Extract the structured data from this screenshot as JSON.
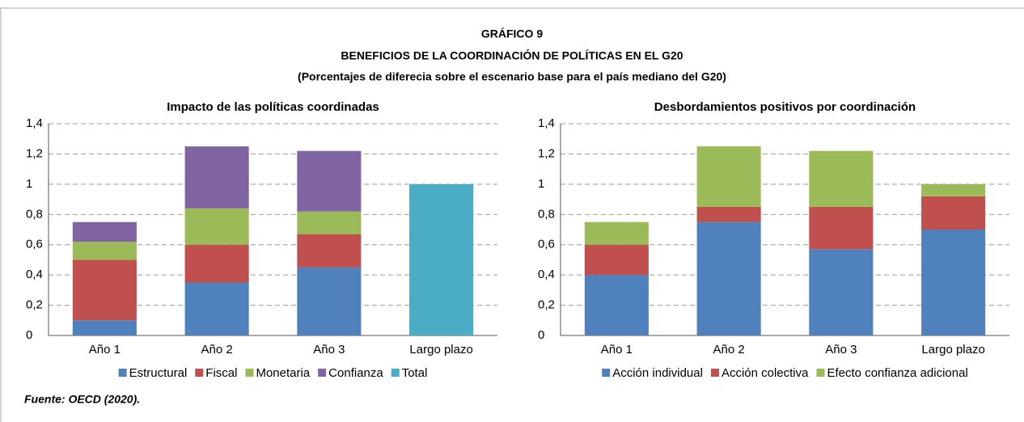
{
  "header": {
    "title": "GRÁFICO 9",
    "subtitle": "BENEFICIOS DE LA COORDINACIÓN DE POLÍTICAS EN EL G20",
    "note": "(Porcentajes de diferecia sobre el escenario base para el país mediano del G20)"
  },
  "source": "Fuente: OECD (2020).",
  "chart_data": [
    {
      "type": "stacked_bar",
      "title": "Impacto de las políticas coordinadas",
      "categories": [
        "Año 1",
        "Año 2",
        "Año 3",
        "Largo plazo"
      ],
      "series": [
        {
          "name": "Estructural",
          "color": "#4f81bd",
          "values": [
            0.1,
            0.35,
            0.45,
            null
          ]
        },
        {
          "name": "Fiscal",
          "color": "#c0504d",
          "values": [
            0.4,
            0.25,
            0.22,
            null
          ]
        },
        {
          "name": "Monetaria",
          "color": "#9bbb59",
          "values": [
            0.12,
            0.24,
            0.15,
            null
          ]
        },
        {
          "name": "Confianza",
          "color": "#8064a2",
          "values": [
            0.13,
            0.41,
            0.4,
            null
          ]
        },
        {
          "name": "Total",
          "color": "#4bacc6",
          "values": [
            null,
            null,
            null,
            1.0
          ]
        }
      ],
      "ylim": [
        0,
        1.4
      ],
      "yticks": [
        0,
        {
          "value": 0.2,
          "label": "0,2"
        },
        {
          "value": 0.4,
          "label": "0,4"
        },
        {
          "value": 0.6,
          "label": "0,6"
        },
        {
          "value": 0.8,
          "label": "0,8"
        },
        1,
        {
          "value": 1.2,
          "label": "1,2"
        },
        {
          "value": 1.4,
          "label": "1,4"
        }
      ],
      "grid": true,
      "legend": "bottom"
    },
    {
      "type": "stacked_bar",
      "title": "Desbordamientos positivos por coordinación",
      "categories": [
        "Año 1",
        "Año 2",
        "Año 3",
        "Largo plazo"
      ],
      "series": [
        {
          "name": "Acción individual",
          "color": "#4f81bd",
          "values": [
            0.4,
            0.75,
            0.57,
            0.7
          ]
        },
        {
          "name": "Acción colectiva",
          "color": "#c0504d",
          "values": [
            0.2,
            0.1,
            0.28,
            0.22
          ]
        },
        {
          "name": "Efecto confianza adicional",
          "color": "#9bbb59",
          "values": [
            0.15,
            0.4,
            0.37,
            0.08
          ]
        }
      ],
      "ylim": [
        0,
        1.4
      ],
      "yticks": [
        0,
        {
          "value": 0.2,
          "label": "0,2"
        },
        {
          "value": 0.4,
          "label": "0,4"
        },
        {
          "value": 0.6,
          "label": "0,6"
        },
        {
          "value": 0.8,
          "label": "0,8"
        },
        1,
        {
          "value": 1.2,
          "label": "1,2"
        },
        {
          "value": 1.4,
          "label": "1,4"
        }
      ],
      "grid": true,
      "legend": "bottom"
    }
  ]
}
